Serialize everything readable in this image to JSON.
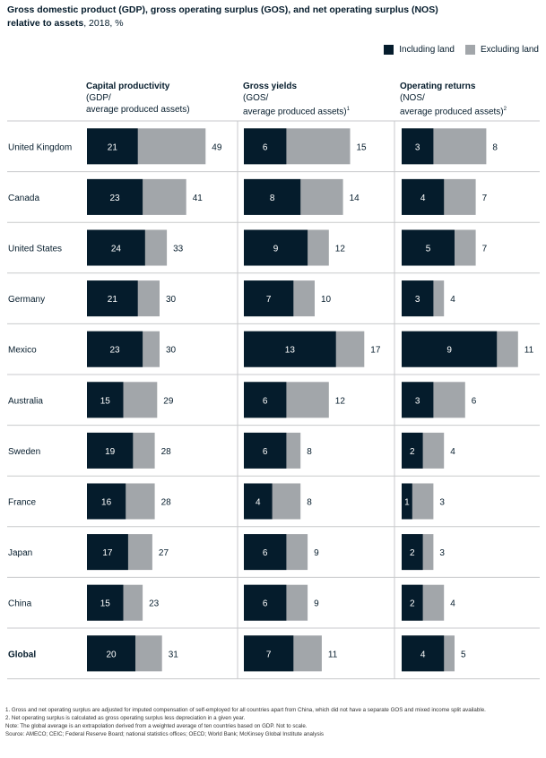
{
  "title": {
    "main": "Gross domestic product (GDP), gross operating surplus (GOS), and net operating surplus (NOS)",
    "line2_bold": "relative to assets",
    "line2_rest": ", 2018, %"
  },
  "legend": {
    "including_label": "Including land",
    "excluding_label": "Excluding land"
  },
  "colors": {
    "including": "#051c2c",
    "excluding": "#a2a6aa",
    "divider": "#c8cacc"
  },
  "columns": [
    {
      "title": "Capital productivity",
      "sub1": "(GDP/",
      "sub2": "average produced assets)",
      "sup": ""
    },
    {
      "title": "Gross yields",
      "sub1": "(GOS/",
      "sub2": "average produced assets)",
      "sup": "1"
    },
    {
      "title": "Operating returns",
      "sub1": "(NOS/",
      "sub2": "average produced assets)",
      "sup": "2"
    }
  ],
  "chart_data": {
    "type": "bar",
    "orientation": "horizontal",
    "stacking": "overlap",
    "categories": [
      "United Kingdom",
      "Canada",
      "United States",
      "Germany",
      "Mexico",
      "Australia",
      "Sweden",
      "France",
      "Japan",
      "China",
      "Global"
    ],
    "panels": [
      {
        "name": "Capital productivity",
        "series": [
          {
            "name": "Including land",
            "values": [
              21,
              23,
              24,
              21,
              23,
              15,
              19,
              16,
              17,
              15,
              20
            ]
          },
          {
            "name": "Excluding land",
            "values": [
              49,
              41,
              33,
              30,
              30,
              29,
              28,
              28,
              27,
              23,
              31
            ]
          }
        ]
      },
      {
        "name": "Gross yields",
        "series": [
          {
            "name": "Including land",
            "values": [
              6,
              8,
              9,
              7,
              13,
              6,
              6,
              4,
              6,
              6,
              7
            ]
          },
          {
            "name": "Excluding land",
            "values": [
              15,
              14,
              12,
              10,
              17,
              12,
              8,
              8,
              9,
              9,
              11
            ]
          }
        ]
      },
      {
        "name": "Operating returns",
        "series": [
          {
            "name": "Including land",
            "values": [
              3,
              4,
              5,
              3,
              9,
              3,
              2,
              1,
              2,
              2,
              4
            ]
          },
          {
            "name": "Excluding land",
            "values": [
              8,
              7,
              7,
              4,
              11,
              6,
              4,
              3,
              3,
              4,
              5
            ]
          }
        ]
      }
    ]
  },
  "footnotes": [
    "1.   Gross and net operating surplus are adjusted for imputed compensation of self-employed for all countries apart from China, which did not have a separate GOS and mixed income split available.",
    "2.   Net operating surplus is calculated as gross operating surplus less depreciation in a given year.",
    "Note: The global average is an extrapolation derived from a weighted average of ten countries based on GDP. Not to scale.",
    "Source: AMECO; CEIC; Federal Reserve Board; national statistics offices; OECD; World Bank; McKinsey Global Institute analysis"
  ]
}
